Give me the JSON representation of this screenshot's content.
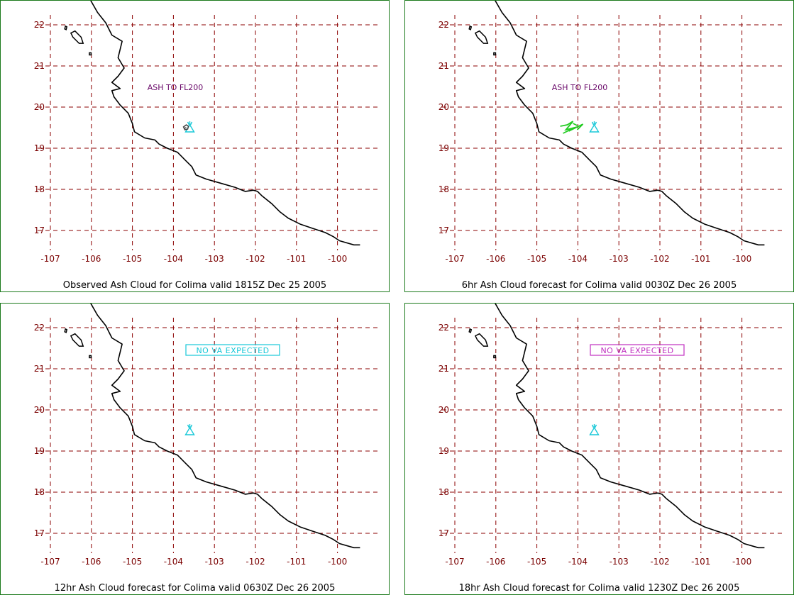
{
  "panels": [
    {
      "caption": "Observed Ash Cloud for Colima valid 1815Z Dec 25 2005",
      "annotation": {
        "text": "ASH TO FL200",
        "color": "#6a0a6a",
        "boxed": false
      },
      "volcano_color": "#18c8d8",
      "ash_cloud": {
        "color": "#444444",
        "kind": "observed"
      }
    },
    {
      "caption": "6hr Ash Cloud forecast for Colima valid 0030Z Dec 26 2005",
      "annotation": {
        "text": "ASH TO FL200",
        "color": "#6a0a6a",
        "boxed": false
      },
      "volcano_color": "#18c8d8",
      "ash_cloud": {
        "color": "#22cc22",
        "kind": "forecast"
      }
    },
    {
      "caption": "12hr Ash Cloud forecast for Colima valid 0630Z Dec 26 2005",
      "annotation": {
        "text": "NO VA EXPECTED",
        "color": "#18c8d8",
        "boxed": true
      },
      "volcano_color": "#18c8d8",
      "ash_cloud": null
    },
    {
      "caption": "18hr Ash Cloud forecast for Colima valid 1230Z Dec 26 2005",
      "annotation": {
        "text": "NO VA EXPECTED",
        "color": "#c030c0",
        "boxed": true
      },
      "volcano_color": "#18c8d8",
      "ash_cloud": null
    }
  ],
  "map": {
    "lon_ticks": [
      "-107",
      "-106",
      "-105",
      "-104",
      "-103",
      "-102",
      "-101",
      "-100"
    ],
    "lat_ticks": [
      "22",
      "21",
      "20",
      "19",
      "18",
      "17"
    ],
    "volcano": {
      "name": "Colima",
      "lon": -103.6,
      "lat": 19.5
    },
    "grid_color": "#8b0000",
    "coast_color": "#000000",
    "border_color": "#1b7a1b"
  }
}
